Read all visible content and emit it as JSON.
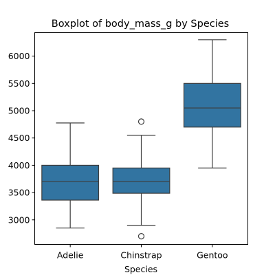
{
  "chart_data": {
    "type": "box",
    "title": "Boxplot of body_mass_g by Species",
    "xlabel": "Species",
    "ylabel": "",
    "ylim": [
      2550,
      6430
    ],
    "yticks": [
      3000,
      3500,
      4000,
      4500,
      5000,
      5500,
      6000
    ],
    "grid": false,
    "box_color": "#3274a1",
    "line_color": "#3d3d3d",
    "categories": [
      "Adelie",
      "Chinstrap",
      "Gentoo"
    ],
    "boxes": [
      {
        "category": "Adelie",
        "whisker_low": 2850,
        "q1": 3362,
        "median": 3700,
        "q3": 4000,
        "whisker_high": 4775,
        "outliers": []
      },
      {
        "category": "Chinstrap",
        "whisker_low": 2900,
        "q1": 3487,
        "median": 3700,
        "q3": 3950,
        "whisker_high": 4550,
        "outliers": [
          2700,
          4800
        ]
      },
      {
        "category": "Gentoo",
        "whisker_low": 3950,
        "q1": 4700,
        "median": 5050,
        "q3": 5500,
        "whisker_high": 6300,
        "outliers": []
      }
    ]
  }
}
